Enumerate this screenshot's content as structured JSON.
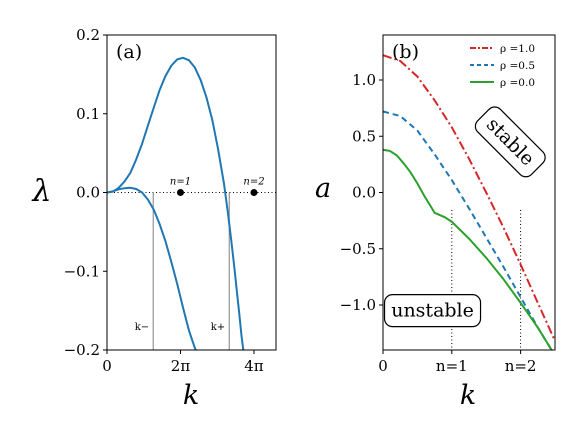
{
  "chart_data": [
    {
      "panel": "(a)",
      "type": "line",
      "xlabel": "k",
      "ylabel": "λ",
      "xlim": [
        0,
        14.45
      ],
      "ylim": [
        -0.2,
        0.2
      ],
      "x_tick_labels": [
        "0",
        "2π",
        "4π"
      ],
      "x_ticks": [
        0,
        6.2832,
        12.5664
      ],
      "y_tick_labels": [
        "−0.2",
        "−0.1",
        "0.0",
        "0.1",
        "0.2"
      ],
      "y_ticks": [
        -0.2,
        -0.1,
        0.0,
        0.1,
        0.2
      ],
      "series": [
        {
          "color": "#1f77b4",
          "x": [
            0,
            0.5,
            1.0,
            1.5,
            2.0,
            2.5,
            3.0,
            3.5,
            4.0,
            4.5,
            5.0,
            5.5,
            6.0,
            6.5,
            7.0,
            7.5,
            8.0,
            8.5,
            9.0,
            9.5,
            10.0,
            10.3,
            10.6,
            10.9,
            11.1,
            11.3,
            11.5,
            11.7
          ],
          "y": [
            0,
            0.001,
            0.006,
            0.014,
            0.025,
            0.042,
            0.062,
            0.085,
            0.108,
            0.13,
            0.148,
            0.161,
            0.169,
            0.171,
            0.168,
            0.159,
            0.143,
            0.121,
            0.092,
            0.055,
            0.011,
            -0.022,
            -0.058,
            -0.097,
            -0.125,
            -0.153,
            -0.182,
            -0.205
          ]
        },
        {
          "color": "#1f77b4",
          "x": [
            0,
            0.5,
            1.0,
            1.5,
            2.0,
            2.5,
            3.0,
            3.5,
            4.0,
            4.5,
            5.0,
            5.5,
            6.0,
            6.5,
            7.0,
            7.5,
            7.9
          ],
          "y": [
            0,
            0.0015,
            0.004,
            0.0055,
            0.006,
            0.0045,
            0.0,
            -0.009,
            -0.022,
            -0.04,
            -0.062,
            -0.088,
            -0.116,
            -0.146,
            -0.175,
            -0.197,
            -0.21
          ]
        }
      ],
      "reference_lines": [
        {
          "style": "dotted",
          "y": 0
        },
        {
          "style": "solid-gray",
          "x": 3.95,
          "label": "k−"
        },
        {
          "style": "solid-gray",
          "x": 10.45,
          "label": "k+"
        }
      ],
      "points": [
        {
          "x": 6.2832,
          "y": 0,
          "label": "n=1"
        },
        {
          "x": 12.5664,
          "y": 0,
          "label": "n=2"
        }
      ]
    },
    {
      "panel": "(b)",
      "type": "line",
      "xlabel": "k",
      "ylabel": "a",
      "xlim": [
        0,
        2.5
      ],
      "ylim": [
        -1.4,
        1.4
      ],
      "x_tick_labels": [
        "0",
        "n=1",
        "n=2"
      ],
      "x_ticks": [
        0,
        1,
        2
      ],
      "y_tick_labels": [
        "−1.0",
        "−0.5",
        "0.0",
        "0.5",
        "1.0"
      ],
      "y_ticks": [
        -1.0,
        -0.5,
        0.0,
        0.5,
        1.0
      ],
      "legend_position": "top-right",
      "series": [
        {
          "name": "ρ =1.0",
          "color": "#d62728",
          "dash": "dashdot",
          "x": [
            0,
            0.25,
            0.5,
            0.75,
            1.0,
            1.25,
            1.5,
            1.75,
            2.0,
            2.25,
            2.5
          ],
          "y": [
            1.22,
            1.17,
            1.03,
            0.82,
            0.58,
            0.3,
            0.0,
            -0.31,
            -0.64,
            -0.98,
            -1.32
          ]
        },
        {
          "name": "ρ =0.5",
          "color": "#1f77b4",
          "dash": "dashed",
          "x": [
            0,
            0.25,
            0.5,
            0.75,
            1.0,
            1.25,
            1.5,
            1.75,
            2.0,
            2.25,
            2.5
          ],
          "y": [
            0.72,
            0.68,
            0.55,
            0.34,
            0.11,
            -0.14,
            -0.4,
            -0.66,
            -0.93,
            -1.2,
            -1.45
          ]
        },
        {
          "name": "ρ =0.0",
          "color": "#2ca02c",
          "dash": "solid",
          "x": [
            0,
            0.1,
            0.2,
            0.3,
            0.4,
            0.5,
            0.6,
            0.7,
            0.75,
            0.9,
            1.0,
            1.25,
            1.5,
            1.75,
            2.0,
            2.25,
            2.5
          ],
          "y": [
            0.38,
            0.37,
            0.33,
            0.26,
            0.18,
            0.08,
            -0.03,
            -0.13,
            -0.18,
            -0.22,
            -0.26,
            -0.41,
            -0.58,
            -0.77,
            -0.98,
            -1.2,
            -1.45
          ]
        }
      ],
      "reference_lines": [
        {
          "style": "dotted",
          "x": 1
        },
        {
          "style": "dotted",
          "x": 2
        }
      ],
      "annotations": [
        {
          "text": "stable",
          "x": 1.85,
          "y": 0.45,
          "rotation": 45
        },
        {
          "text": "unstable",
          "x": 0.72,
          "y": -1.05
        }
      ]
    }
  ]
}
